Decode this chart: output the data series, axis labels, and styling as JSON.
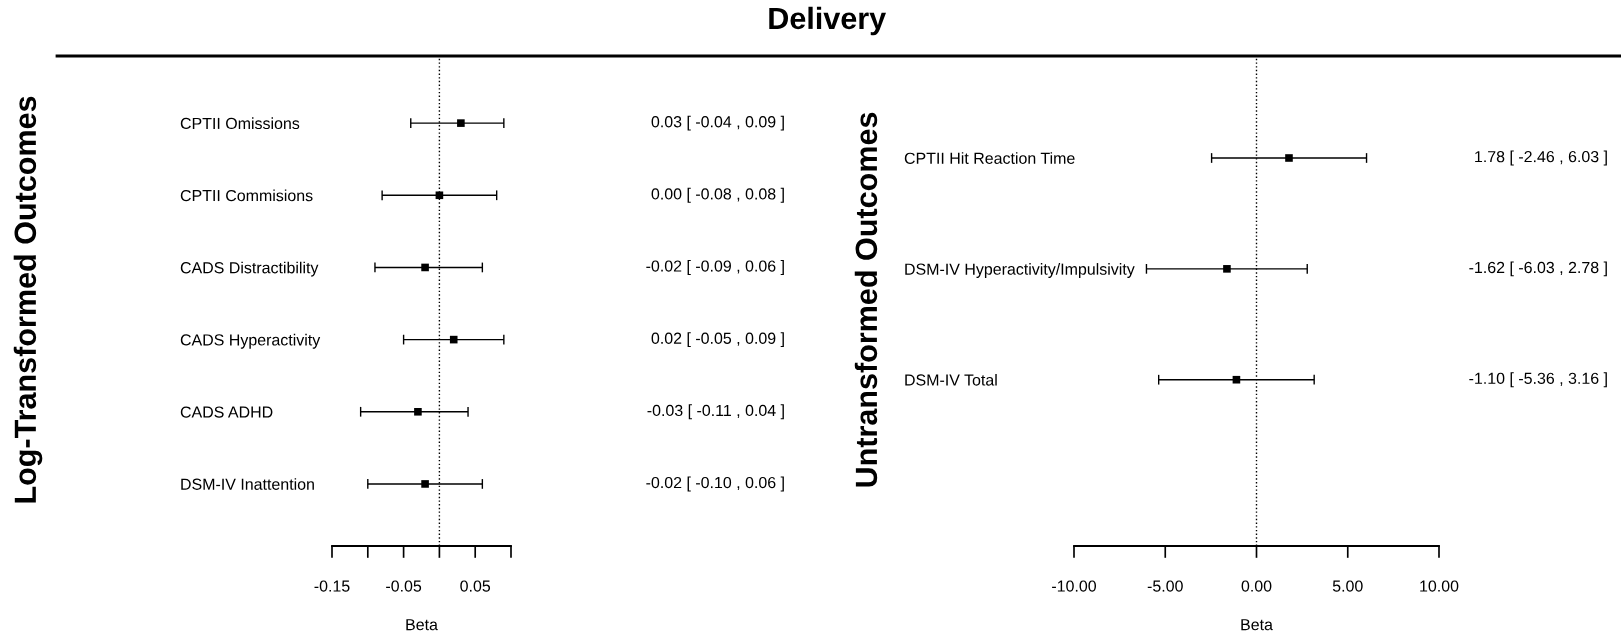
{
  "chart_data": [
    {
      "type": "scatter",
      "orientation": "horizontal",
      "ylabel": "Log-Transformed Outcomes",
      "xlabel": "Beta",
      "categories": [
        "CPTII Omissions",
        "CPTII Commisions",
        "CADS Distractibility",
        "CADS Hyperactivity",
        "CADS ADHD",
        "DSM-IV Inattention"
      ],
      "values": [
        0.03,
        0.0,
        -0.02,
        0.02,
        -0.03,
        -0.02
      ],
      "errors": [
        [
          -0.04,
          0.09
        ],
        [
          -0.08,
          0.08
        ],
        [
          -0.09,
          0.06
        ],
        [
          -0.05,
          0.09
        ],
        [
          -0.11,
          0.04
        ],
        [
          -0.1,
          0.06
        ]
      ],
      "value_labels": [
        "0.03 [ -0.04 , 0.09 ]",
        "0.00 [ -0.08 , 0.08 ]",
        "-0.02 [ -0.09 , 0.06 ]",
        "0.02 [ -0.05 , 0.09 ]",
        "-0.03 [ -0.11 , 0.04 ]",
        "-0.02 [ -0.10 , 0.06 ]"
      ],
      "xlim": [
        -0.15,
        0.1
      ],
      "xticks": [
        -0.15,
        {
          "value": -0.1,
          "label": null
        },
        -0.05,
        {
          "value": 0,
          "label": null
        },
        0.05,
        {
          "value": 0.1,
          "label": null
        }
      ],
      "ref_lines": [
        {
          "axis": "x",
          "value": 0,
          "color": "#000000",
          "line_style": "dotted"
        }
      ],
      "marker": "square",
      "color": "#000000"
    },
    {
      "type": "scatter",
      "orientation": "horizontal",
      "title": "Delivery",
      "ylabel": "Untransformed Outcomes",
      "xlabel": "Beta",
      "categories": [
        "CPTII Hit Reaction Time",
        "DSM-IV Hyperactivity/Impulsivity",
        "DSM-IV Total"
      ],
      "values": [
        1.78,
        -1.62,
        -1.1
      ],
      "errors": [
        [
          -2.46,
          6.03
        ],
        [
          -6.03,
          2.78
        ],
        [
          -5.36,
          3.16
        ]
      ],
      "value_labels": [
        "1.78 [ -2.46 , 6.03 ]",
        "-1.62 [ -6.03 , 2.78 ]",
        "-1.10 [ -5.36 , 3.16 ]"
      ],
      "xlim": [
        -10,
        10
      ],
      "xticks": [
        {
          "value": -10,
          "label": "-10.00"
        },
        {
          "value": -5,
          "label": "-5.00"
        },
        {
          "value": 0,
          "label": "0.00"
        },
        {
          "value": 5,
          "label": "5.00"
        },
        {
          "value": 10,
          "label": "10.00"
        }
      ],
      "ref_lines": [
        {
          "axis": "x",
          "value": 0,
          "color": "#000000",
          "line_style": "dotted"
        }
      ],
      "marker": "square",
      "color": "#000000"
    }
  ]
}
